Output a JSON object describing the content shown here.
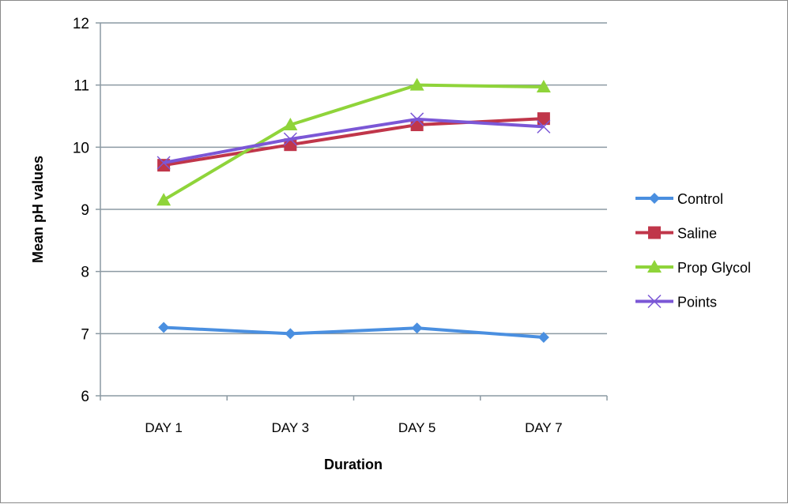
{
  "chart_data": {
    "type": "line",
    "title": "",
    "xlabel": "Duration",
    "ylabel": "Mean pH values",
    "ylim": [
      6,
      12
    ],
    "yticks": [
      "6",
      "7",
      "8",
      "9",
      "10",
      "11",
      "12"
    ],
    "categories": [
      "DAY 1",
      "DAY 3",
      "DAY 5",
      "DAY 7"
    ],
    "grid": true,
    "legend_position": "right",
    "series": [
      {
        "name": "Control",
        "color": "#4a8fe0",
        "marker": "diamond",
        "values": [
          7.1,
          7.0,
          7.09,
          6.94
        ]
      },
      {
        "name": "Saline",
        "color": "#c0364a",
        "marker": "square",
        "values": [
          9.71,
          10.04,
          10.36,
          10.46
        ]
      },
      {
        "name": "Prop Glycol",
        "color": "#8fd43a",
        "marker": "triangle",
        "values": [
          9.15,
          10.36,
          11.0,
          10.97
        ]
      },
      {
        "name": "Points",
        "color": "#7b57d6",
        "marker": "x",
        "values": [
          9.75,
          10.13,
          10.45,
          10.33
        ]
      }
    ]
  }
}
